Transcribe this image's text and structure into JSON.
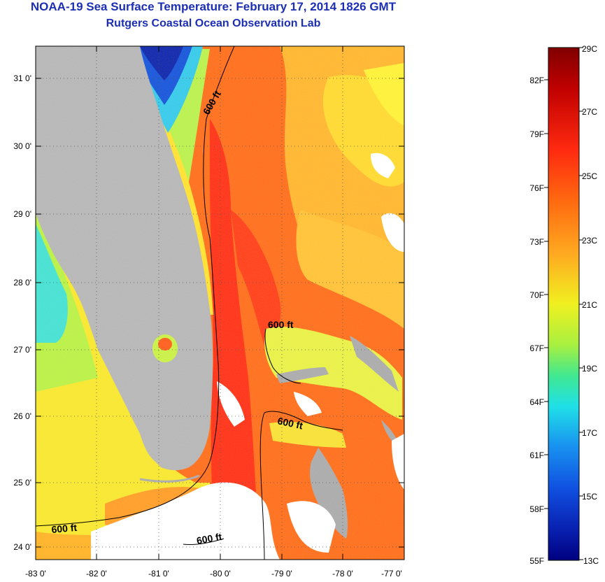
{
  "header": {
    "title": "NOAA-19 Sea Surface Temperature:  February 17, 2014 1826 GMT",
    "subtitle": "Rutgers Coastal Ocean Observation Lab"
  },
  "map": {
    "lat_labels": [
      "31 0'",
      "30 0'",
      "29 0'",
      "28 0'",
      "27 0'",
      "26 0'",
      "25 0'",
      "24 0'"
    ],
    "lon_labels": [
      "-83 0'",
      "-82 0'",
      "-81 0'",
      "-80 0'",
      "-79 0'",
      "-78 0'",
      "-77 0'"
    ],
    "contour_labels": [
      "600 ft",
      "600 ft",
      "600 ft",
      "600 ft",
      "600 ft"
    ],
    "land_color": "#b4b4b4",
    "cloud_color": "#ffffff"
  },
  "colorbar": {
    "celsius_labels": [
      "29C",
      "27C",
      "25C",
      "23C",
      "21C",
      "19C",
      "17C",
      "15C",
      "13C"
    ],
    "fahrenheit_labels": [
      "82F",
      "79F",
      "76F",
      "73F",
      "70F",
      "67F",
      "64F",
      "61F",
      "58F",
      "55F"
    ],
    "colors": [
      "#800000",
      "#e01010",
      "#ff5a10",
      "#ffa020",
      "#ffe020",
      "#b8f040",
      "#30e8d8",
      "#1888f0",
      "#1030d0",
      "#000088"
    ]
  }
}
